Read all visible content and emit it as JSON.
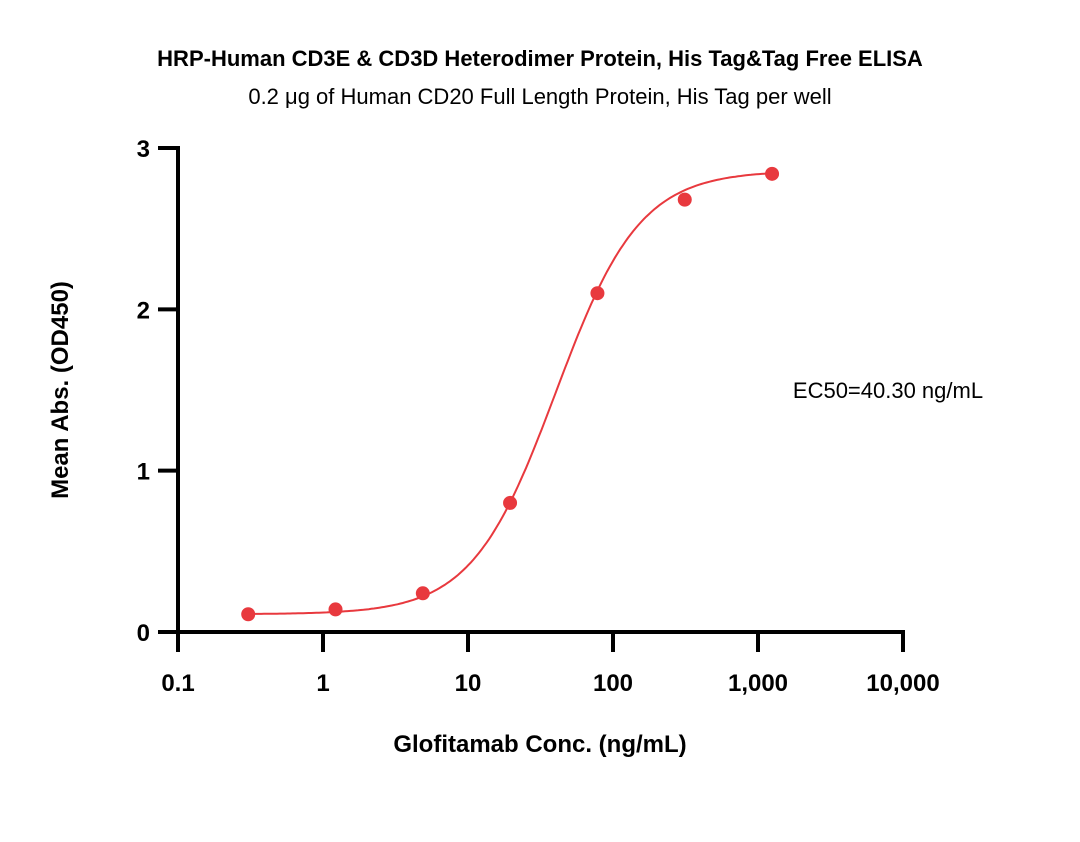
{
  "chart_data": {
    "type": "scatter",
    "title": "HRP-Human CD3E & CD3D Heterodimer Protein, His Tag&Tag Free ELISA",
    "subtitle": "0.2 μg of Human CD20 Full Length Protein, His Tag per well",
    "xlabel": "Glofitamab Conc. (ng/mL)",
    "ylabel": "Mean Abs. (OD450)",
    "xscale": "log",
    "xlim": [
      0.1,
      10000
    ],
    "ylim": [
      0,
      3
    ],
    "xticks": [
      0.1,
      1,
      10,
      100,
      1000,
      10000
    ],
    "xtick_labels": [
      "0.1",
      "1",
      "10",
      "100",
      "1,000",
      "10,000"
    ],
    "yticks": [
      0,
      1,
      2,
      3
    ],
    "ytick_labels": [
      "0",
      "1",
      "2",
      "3"
    ],
    "grid": false,
    "series": [
      {
        "name": "Glofitamab",
        "color": "#e8393e",
        "x": [
          0.305,
          1.22,
          4.88,
          19.5,
          78.1,
          312.5,
          1250
        ],
        "y": [
          0.11,
          0.14,
          0.24,
          0.8,
          2.1,
          2.68,
          2.84
        ],
        "fit": {
          "model": "4PL",
          "bottom": 0.11,
          "top": 2.86,
          "ec50": 40.3,
          "hill": 1.5
        }
      }
    ],
    "annotation": "EC50=40.30 ng/mL"
  }
}
